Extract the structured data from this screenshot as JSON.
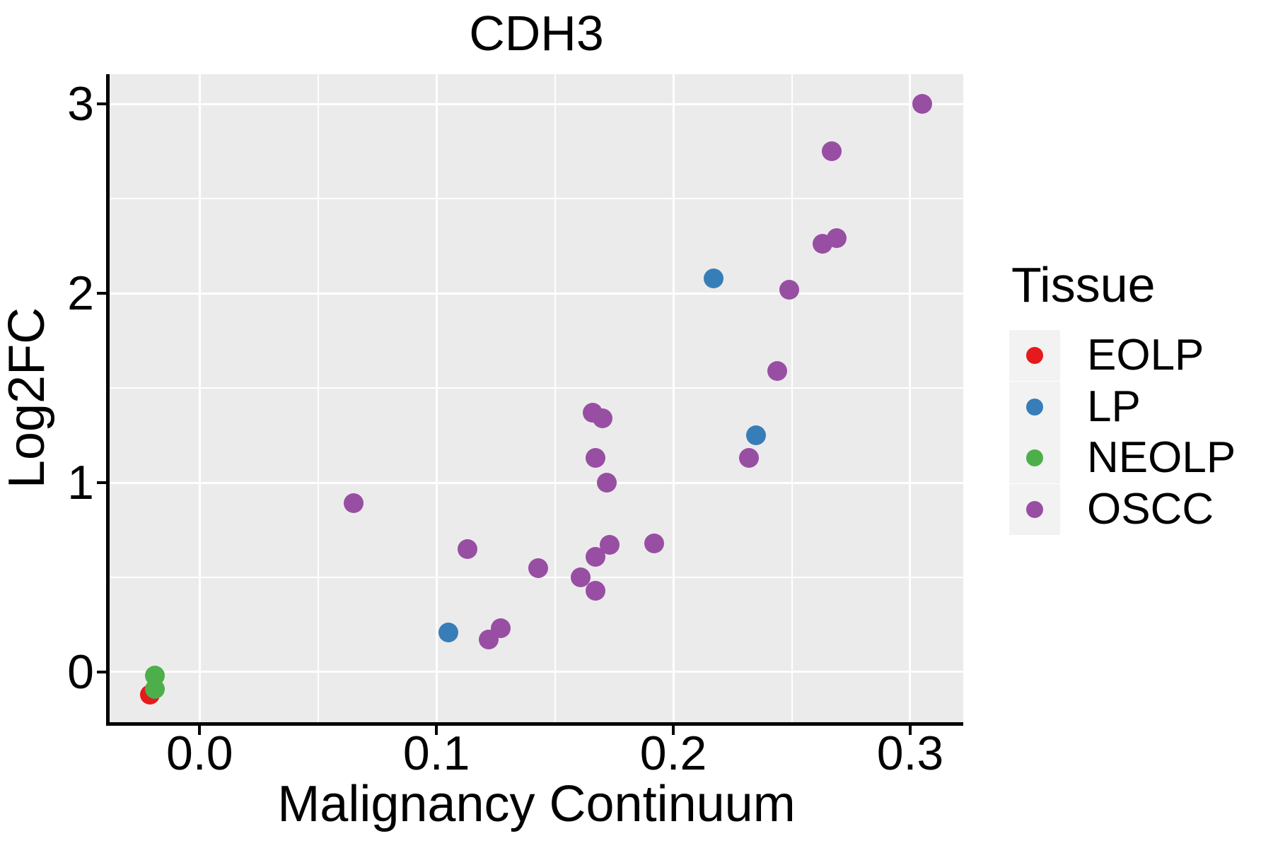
{
  "chart_data": {
    "type": "scatter",
    "title": "CDH3",
    "xlabel": "Malignancy Continuum",
    "ylabel": "Log2FC",
    "legend_title": "Tissue",
    "legend_position": "right",
    "grid": true,
    "panel_bg": "#EBEBEB",
    "grid_color": "#FFFFFF",
    "xlim": [
      -0.038,
      0.3224
    ],
    "ylim": [
      -0.265,
      3.157
    ],
    "x_ticks": {
      "values": [
        0.0,
        0.1,
        0.2,
        0.3
      ],
      "labels": [
        "0.0",
        "0.1",
        "0.2",
        "0.3"
      ]
    },
    "y_ticks": {
      "values": [
        0,
        1,
        2,
        3
      ],
      "labels": [
        "0",
        "1",
        "2",
        "3"
      ]
    },
    "x_minor_ticks": [
      0.05,
      0.15,
      0.25
    ],
    "y_minor_ticks": [
      0.5,
      1.5,
      2.5
    ],
    "series": [
      {
        "name": "EOLP",
        "color": "#E41A1C",
        "points": [
          [
            -0.021,
            -0.12
          ]
        ]
      },
      {
        "name": "LP",
        "color": "#377EB8",
        "points": [
          [
            0.105,
            0.21
          ],
          [
            0.217,
            2.08
          ],
          [
            0.235,
            1.25
          ]
        ]
      },
      {
        "name": "NEOLP",
        "color": "#4DAF4A",
        "points": [
          [
            -0.019,
            -0.02
          ],
          [
            -0.019,
            -0.09
          ]
        ]
      },
      {
        "name": "OSCC",
        "color": "#984EA3",
        "points": [
          [
            0.065,
            0.89
          ],
          [
            0.113,
            0.65
          ],
          [
            0.122,
            0.17
          ],
          [
            0.127,
            0.23
          ],
          [
            0.143,
            0.55
          ],
          [
            0.161,
            0.5
          ],
          [
            0.166,
            1.37
          ],
          [
            0.167,
            1.13
          ],
          [
            0.167,
            0.61
          ],
          [
            0.167,
            0.43
          ],
          [
            0.17,
            1.34
          ],
          [
            0.172,
            1.0
          ],
          [
            0.173,
            0.67
          ],
          [
            0.192,
            0.68
          ],
          [
            0.232,
            1.13
          ],
          [
            0.244,
            1.59
          ],
          [
            0.249,
            2.02
          ],
          [
            0.263,
            2.26
          ],
          [
            0.269,
            2.29
          ],
          [
            0.267,
            2.75
          ],
          [
            0.305,
            3.0
          ]
        ]
      }
    ]
  },
  "legend": {
    "title": "Tissue",
    "items": [
      {
        "label": "EOLP",
        "color": "#E41A1C"
      },
      {
        "label": "LP",
        "color": "#377EB8"
      },
      {
        "label": "NEOLP",
        "color": "#4DAF4A"
      },
      {
        "label": "OSCC",
        "color": "#984EA3"
      }
    ]
  },
  "styles": {
    "panel_bg": "#EBEBEB",
    "grid_color": "#FFFFFF",
    "axis_color": "#000000",
    "text_color": "#000000",
    "legend_key_bg": "#F2F2F2",
    "point_radius": 14,
    "legend_dot_radius": 12
  }
}
